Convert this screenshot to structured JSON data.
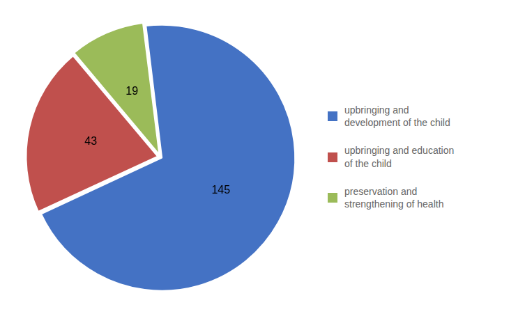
{
  "chart_data": {
    "type": "pie",
    "categories": [
      "upbringing and\ndevelopment of the child",
      "upbringing and education\nof the child",
      "preservation and\nstrengthening of health"
    ],
    "values": [
      145,
      43,
      19
    ],
    "colors": [
      "#4472C4",
      "#C0504D",
      "#9BBB59"
    ],
    "data_labels": true,
    "legend": "right"
  }
}
